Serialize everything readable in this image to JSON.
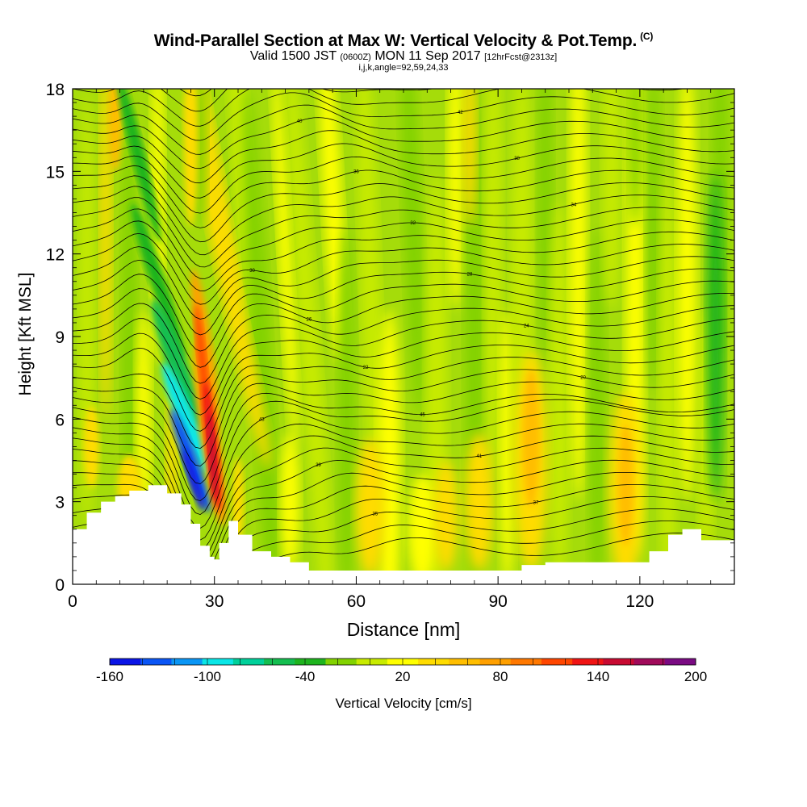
{
  "chart_data": {
    "type": "heatmap",
    "title": "Wind-Parallel Section at Max W: Vertical Velocity & Pot.Temp.",
    "title_mark": "(C)",
    "subtitle_main": "Valid 1500 JST",
    "subtitle_utc": "(0600Z)",
    "subtitle_date": "MON 11 Sep 2017",
    "subtitle_fcst": "[12hrFcst@2313z]",
    "subtitle_ijk": "i,j,k,angle=92,59,24,33",
    "xlabel": "Distance [nm]",
    "ylabel": "Height [Kft MSL]",
    "xlim": [
      0,
      140
    ],
    "ylim": [
      0,
      18
    ],
    "xticks": [
      0,
      30,
      60,
      90,
      120
    ],
    "yticks": [
      0,
      3,
      6,
      9,
      12,
      15,
      18
    ],
    "colorbar": {
      "label": "Vertical Velocity [cm/s]",
      "min": -160,
      "max": 200,
      "step": 20,
      "tick_values": [
        -160,
        -100,
        -40,
        20,
        80,
        140,
        200
      ],
      "colors": [
        "#0a14e6",
        "#0a55f5",
        "#0a96f5",
        "#0ae6e6",
        "#00d09a",
        "#14be50",
        "#1eb41e",
        "#82d200",
        "#c8eb00",
        "#ffff00",
        "#ffdc00",
        "#ffbe00",
        "#ffa000",
        "#ff7800",
        "#ff4600",
        "#f01414",
        "#c80a32",
        "#a00a5a",
        "#7a0a82"
      ]
    },
    "terrain_kft": [
      [
        0,
        2.0
      ],
      [
        3,
        2.6
      ],
      [
        6,
        3.0
      ],
      [
        9,
        3.2
      ],
      [
        12,
        3.4
      ],
      [
        16,
        3.6
      ],
      [
        20,
        3.3
      ],
      [
        23,
        2.9
      ],
      [
        25,
        2.2
      ],
      [
        27,
        1.4
      ],
      [
        29,
        1.0
      ],
      [
        30,
        0.9
      ],
      [
        31,
        1.5
      ],
      [
        33,
        2.3
      ],
      [
        35,
        1.8
      ],
      [
        38,
        1.2
      ],
      [
        42,
        1.0
      ],
      [
        46,
        0.8
      ],
      [
        50,
        0.5
      ],
      [
        55,
        0.5
      ],
      [
        60,
        0.5
      ],
      [
        70,
        0.5
      ],
      [
        80,
        0.5
      ],
      [
        90,
        0.5
      ],
      [
        95,
        0.7
      ],
      [
        100,
        0.8
      ],
      [
        110,
        0.8
      ],
      [
        118,
        0.8
      ],
      [
        122,
        1.2
      ],
      [
        126,
        1.8
      ],
      [
        129,
        2.0
      ],
      [
        133,
        1.6
      ],
      [
        137,
        1.6
      ],
      [
        140,
        1.6
      ]
    ],
    "velocity_features_cms": [
      {
        "x": 25,
        "z": 4.5,
        "w": -160
      },
      {
        "x": 22,
        "z": 7.5,
        "w": -80
      },
      {
        "x": 29,
        "z": 5.5,
        "w": 160
      },
      {
        "x": 27,
        "z": 8.5,
        "w": 120
      },
      {
        "x": 97,
        "z": 5.5,
        "w": 60
      },
      {
        "x": 117,
        "z": 3.5,
        "w": 60
      },
      {
        "x": 63,
        "z": 2.5,
        "w": 40
      }
    ],
    "isentrope_labels": [
      "46",
      "45",
      "44",
      "43",
      "42",
      "41",
      "40",
      "39",
      "38",
      "37",
      "36",
      "35",
      "34",
      "33",
      "32",
      "31",
      "30",
      "29",
      "28",
      "27",
      "26",
      "25",
      "24",
      "23",
      "22",
      "21",
      "20"
    ]
  }
}
